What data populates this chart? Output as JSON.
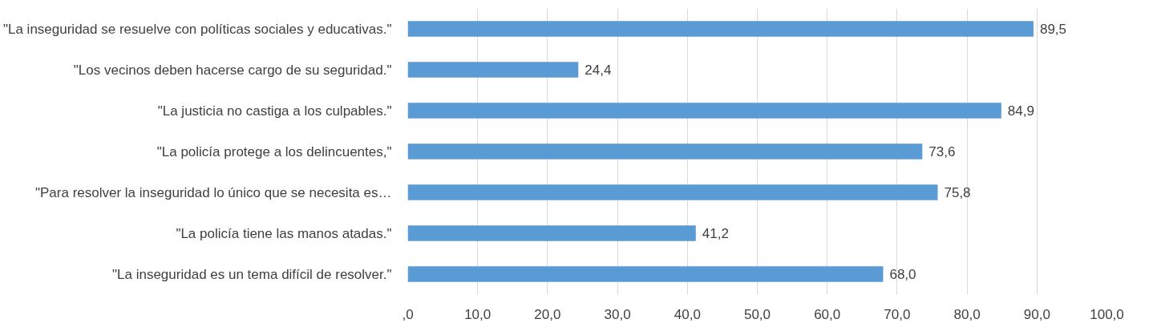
{
  "chart_data": {
    "type": "bar",
    "orientation": "horizontal",
    "categories": [
      "\"La inseguridad se resuelve con políticas sociales y educativas.\"",
      "\"Los vecinos deben hacerse cargo de su seguridad.\"",
      "\"La justicia no castiga a los culpables.\"",
      "\"La policía protege a los delincuentes,\"",
      "\"Para resolver la inseguridad lo único que se necesita es…",
      "\"La policía tiene las manos atadas.\"",
      "\"La inseguridad es un tema difícil de resolver.\""
    ],
    "values": [
      89.5,
      24.4,
      84.9,
      73.6,
      75.8,
      41.2,
      68.0
    ],
    "value_labels": [
      "89,5",
      "24,4",
      "84,9",
      "73,6",
      "75,8",
      "41,2",
      "68,0"
    ],
    "color": "#5b9bd5",
    "xlim": [
      0,
      100
    ],
    "xticks": [
      {
        "value": 0,
        "label": ",0"
      },
      {
        "value": 10,
        "label": "10,0"
      },
      {
        "value": 20,
        "label": "20,0"
      },
      {
        "value": 30,
        "label": "30,0"
      },
      {
        "value": 40,
        "label": "40,0"
      },
      {
        "value": 50,
        "label": "50,0"
      },
      {
        "value": 60,
        "label": "60,0"
      },
      {
        "value": 70,
        "label": "70,0"
      },
      {
        "value": 80,
        "label": "80,0"
      },
      {
        "value": 90,
        "label": "90,0"
      },
      {
        "value": 100,
        "label": "100,0"
      }
    ],
    "grid": "x"
  }
}
